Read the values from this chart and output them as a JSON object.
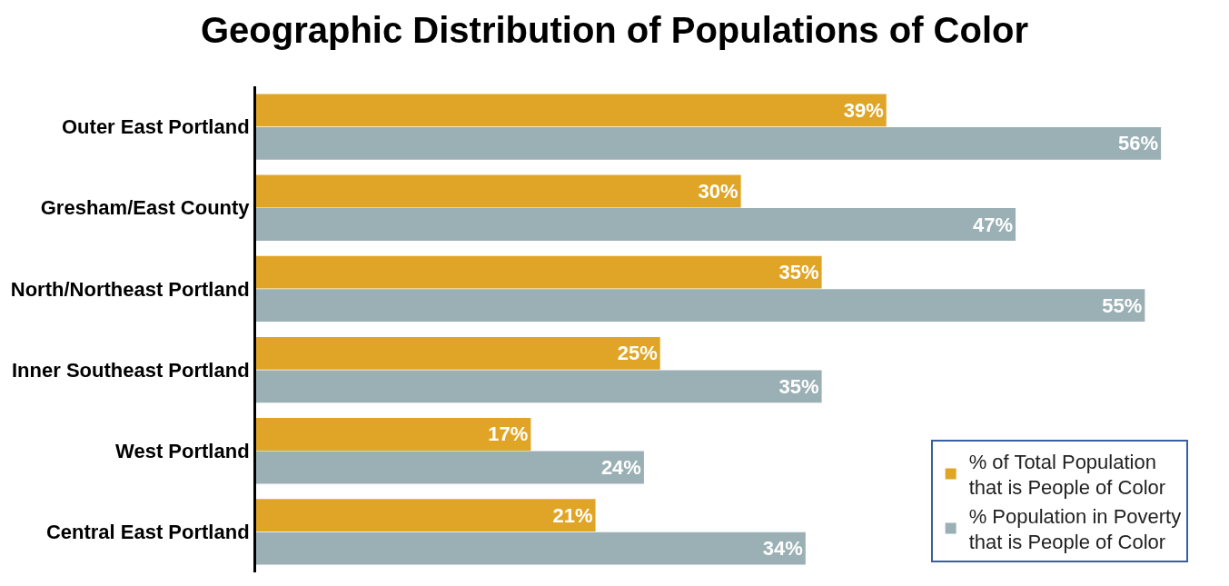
{
  "chart_data": {
    "type": "bar",
    "orientation": "horizontal",
    "title": "Geographic Distribution of Populations of Color",
    "categories": [
      "Outer East Portland",
      "Gresham/East County",
      "North/Northeast Portland",
      "Inner Southeast Portland",
      "West Portland",
      "Central East Portland"
    ],
    "series": [
      {
        "name": "% of Total Population that is People of Color",
        "color": "#e0a526",
        "values": [
          39,
          30,
          35,
          25,
          17,
          21
        ],
        "value_labels": [
          "39%",
          "30%",
          "35%",
          "25%",
          "17%",
          "21%"
        ]
      },
      {
        "name": "% Population in Poverty that is People of Color",
        "color": "#9ab0b5",
        "values": [
          56,
          47,
          55,
          35,
          24,
          34
        ],
        "value_labels": [
          "56%",
          "47%",
          "55%",
          "35%",
          "24%",
          "34%"
        ]
      }
    ],
    "legend": "bottom right",
    "tick_labels": "y"
  }
}
